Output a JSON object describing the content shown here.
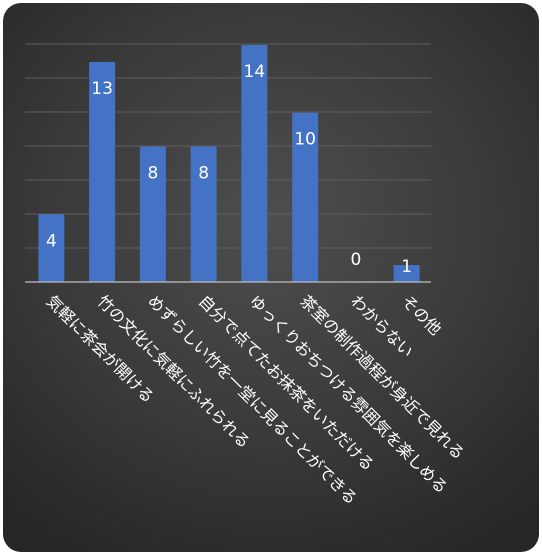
{
  "chart_data": {
    "type": "bar",
    "title": "",
    "xlabel": "",
    "ylabel": "",
    "ylim": [
      0,
      14
    ],
    "grid": true,
    "legend": "none",
    "bar_color": "#4472c4",
    "background": "#3a3a3a",
    "categories": [
      "気軽に茶会が開ける",
      "竹の文化に気軽にふれられる",
      "めずらしい竹を一堂に見ることができる",
      "自分で点てたお抹茶をいただける",
      "ゆっくりおちつける雰囲気を楽しめる",
      "茶室の制作過程が身近で見れる",
      "わからない",
      "その他"
    ],
    "values": [
      4,
      13,
      8,
      8,
      14,
      10,
      0,
      1
    ]
  }
}
